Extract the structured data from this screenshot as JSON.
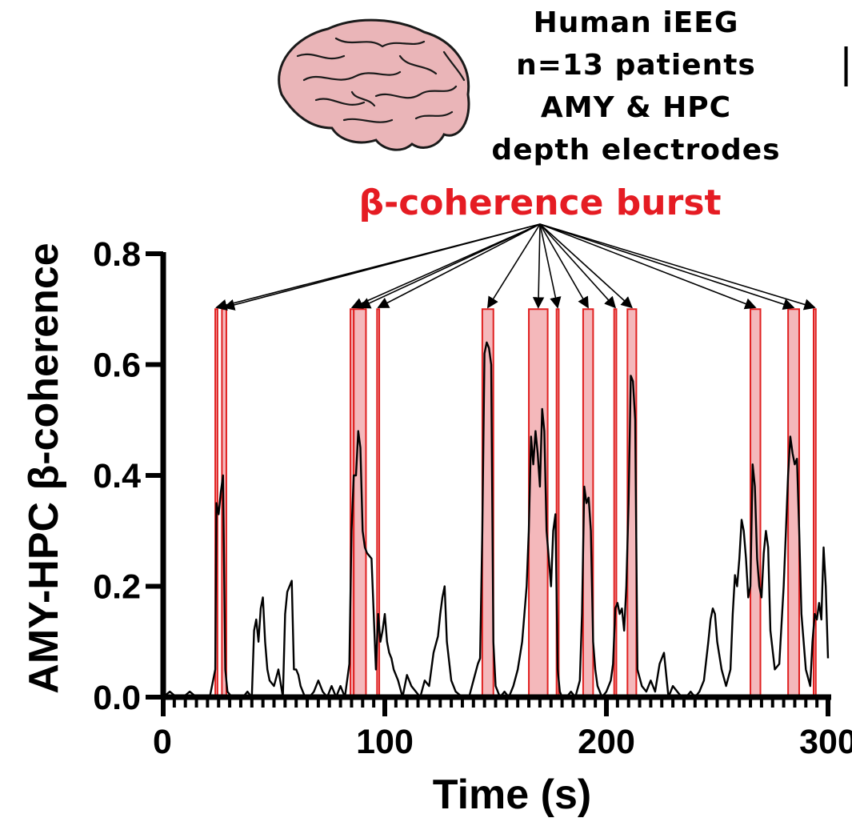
{
  "header": {
    "lines": [
      "Human iEEG",
      "n=13 patients",
      "AMY & HPC",
      "depth electrodes"
    ],
    "brain_icon": "brain-icon",
    "side_mark": "|"
  },
  "chart_data": {
    "type": "line",
    "title": "β-coherence burst",
    "xlabel": "Time (s)",
    "ylabel": "AMY-HPC β-coherence",
    "xlim": [
      0,
      300
    ],
    "ylim": [
      0,
      0.8
    ],
    "x_ticks": [
      0,
      100,
      200,
      300
    ],
    "x_tick_labels": [
      "0",
      "100",
      "200",
      "300"
    ],
    "y_ticks": [
      0.0,
      0.2,
      0.4,
      0.6,
      0.8
    ],
    "y_tick_labels": [
      "0.0",
      "0.2",
      "0.4",
      "0.6",
      "0.8"
    ],
    "burst_top_value": 0.7,
    "bursts": [
      [
        23.5,
        24.5
      ],
      [
        26.5,
        28.5
      ],
      [
        84.5,
        86
      ],
      [
        86,
        91.5
      ],
      [
        96.5,
        97.5
      ],
      [
        144,
        149
      ],
      [
        165,
        173.5
      ],
      [
        177.5,
        178.5
      ],
      [
        189.5,
        194
      ],
      [
        203.5,
        204.5
      ],
      [
        209.5,
        213.5
      ],
      [
        265,
        269.5
      ],
      [
        282,
        287
      ],
      [
        293.5,
        294.5
      ]
    ],
    "series": [
      {
        "name": "AMY-HPC β-coherence",
        "x": [
          0,
          3,
          6,
          9,
          12,
          15,
          18,
          21,
          23.5,
          24,
          25,
          26,
          27,
          28,
          29,
          31,
          33,
          36,
          38,
          40,
          41,
          42,
          43,
          44,
          45,
          46,
          47,
          48,
          50,
          52,
          54,
          55,
          56,
          57,
          58,
          59,
          60,
          61,
          62,
          64,
          66,
          68,
          70,
          72,
          74,
          76,
          78,
          80,
          82,
          84,
          85,
          86,
          87,
          88,
          89,
          90,
          91,
          92,
          94,
          96,
          97,
          98,
          99,
          100,
          101,
          102,
          103,
          104,
          106,
          108,
          110,
          112,
          114,
          116,
          118,
          120,
          122,
          124,
          125,
          126,
          127,
          128,
          130,
          132,
          135,
          138,
          140,
          142,
          143,
          144,
          145,
          146,
          147,
          148,
          149,
          150,
          152,
          154,
          156,
          158,
          160,
          162,
          163,
          164,
          165,
          166,
          167,
          168,
          169,
          170,
          171,
          172,
          173,
          174,
          175,
          176,
          177,
          178,
          179,
          180,
          182,
          184,
          186,
          188,
          189,
          190,
          191,
          192,
          193,
          194,
          195,
          196,
          198,
          200,
          202,
          203,
          204,
          205,
          206,
          207,
          208,
          209,
          210,
          211,
          212,
          213,
          214,
          216,
          218,
          220,
          222,
          224,
          226,
          228,
          230,
          232,
          234,
          236,
          238,
          240,
          242,
          244,
          246,
          247,
          248,
          249,
          250,
          252,
          254,
          256,
          257,
          258,
          259,
          260,
          261,
          262,
          263,
          264,
          265,
          266,
          267,
          268,
          269,
          270,
          271,
          272,
          273,
          274,
          276,
          278,
          280,
          281,
          282,
          283,
          284,
          285,
          286,
          287,
          288,
          290,
          292,
          293,
          294,
          295,
          296,
          297,
          298,
          299,
          300
        ],
        "y": [
          0.0,
          0.01,
          0.0,
          0.0,
          0.01,
          0.0,
          0.0,
          0.0,
          0.05,
          0.35,
          0.33,
          0.37,
          0.4,
          0.05,
          0.01,
          0.0,
          0.0,
          0.0,
          0.01,
          0.0,
          0.12,
          0.14,
          0.1,
          0.16,
          0.18,
          0.1,
          0.05,
          0.03,
          0.02,
          0.05,
          0.0,
          0.15,
          0.19,
          0.2,
          0.21,
          0.05,
          0.05,
          0.04,
          0.02,
          0.0,
          0.0,
          0.01,
          0.03,
          0.01,
          0.0,
          0.02,
          0.0,
          0.02,
          0.0,
          0.06,
          0.3,
          0.4,
          0.4,
          0.48,
          0.45,
          0.3,
          0.27,
          0.26,
          0.25,
          0.05,
          0.15,
          0.1,
          0.12,
          0.15,
          0.1,
          0.08,
          0.07,
          0.05,
          0.03,
          0.0,
          0.04,
          0.02,
          0.01,
          0.0,
          0.03,
          0.02,
          0.08,
          0.11,
          0.15,
          0.18,
          0.2,
          0.1,
          0.03,
          0.01,
          0.0,
          0.0,
          0.03,
          0.06,
          0.07,
          0.3,
          0.62,
          0.64,
          0.63,
          0.6,
          0.1,
          0.02,
          0.0,
          0.01,
          0.0,
          0.02,
          0.05,
          0.1,
          0.15,
          0.2,
          0.3,
          0.47,
          0.42,
          0.48,
          0.44,
          0.38,
          0.52,
          0.48,
          0.3,
          0.25,
          0.2,
          0.3,
          0.33,
          0.05,
          0.01,
          0.0,
          0.0,
          0.01,
          0.0,
          0.03,
          0.15,
          0.38,
          0.35,
          0.36,
          0.3,
          0.1,
          0.05,
          0.02,
          0.0,
          0.01,
          0.03,
          0.06,
          0.16,
          0.17,
          0.15,
          0.16,
          0.12,
          0.2,
          0.35,
          0.58,
          0.57,
          0.5,
          0.05,
          0.02,
          0.01,
          0.03,
          0.01,
          0.06,
          0.08,
          0.0,
          0.02,
          0.01,
          0.0,
          0.0,
          0.01,
          0.0,
          0.01,
          0.03,
          0.1,
          0.14,
          0.16,
          0.15,
          0.1,
          0.05,
          0.02,
          0.05,
          0.15,
          0.22,
          0.2,
          0.25,
          0.32,
          0.3,
          0.25,
          0.18,
          0.2,
          0.42,
          0.38,
          0.25,
          0.2,
          0.18,
          0.26,
          0.3,
          0.27,
          0.12,
          0.05,
          0.06,
          0.2,
          0.3,
          0.4,
          0.47,
          0.44,
          0.42,
          0.43,
          0.3,
          0.15,
          0.05,
          0.02,
          0.1,
          0.15,
          0.14,
          0.17,
          0.14,
          0.27,
          0.2,
          0.07
        ]
      }
    ],
    "colors": {
      "line": "#000000",
      "burst_fill": "#f4b8bb",
      "burst_edge": "#e02020",
      "title": "#e51c23",
      "arrow": "#000000"
    }
  }
}
